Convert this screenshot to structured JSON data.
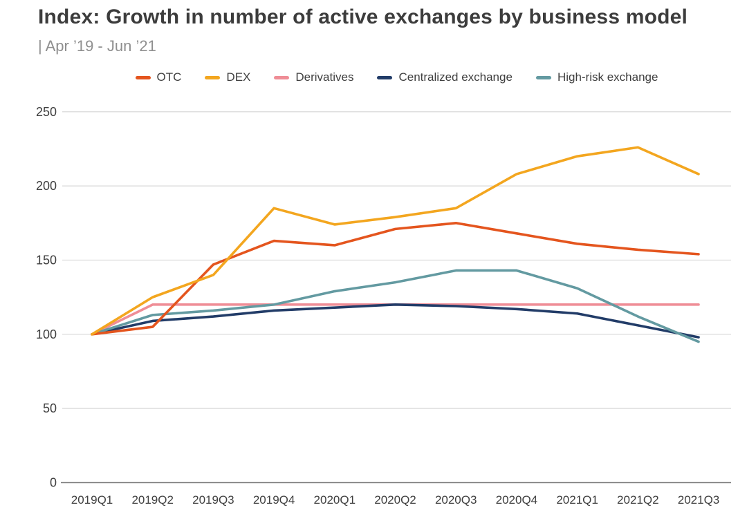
{
  "header": {
    "title": "Index: Growth in number of active exchanges by business model",
    "subtitle": "| Apr ’19 - Jun ’21"
  },
  "axis": {
    "grid_color": "#d9d9d9",
    "axis_line_color": "#7a7a7a",
    "tick_text_color": "#3f3f3f"
  },
  "chart_data": {
    "type": "line",
    "title": "Index: Growth in number of active exchanges by business model",
    "subtitle": "| Apr ’19 - Jun ’21",
    "categories": [
      "2019Q1",
      "2019Q2",
      "2019Q3",
      "2019Q4",
      "2020Q1",
      "2020Q2",
      "2020Q3",
      "2020Q4",
      "2021Q1",
      "2021Q2",
      "2021Q3"
    ],
    "series": [
      {
        "name": "OTC",
        "color": "#e4551e",
        "values": [
          100,
          105,
          147,
          163,
          160,
          171,
          175,
          168,
          161,
          157,
          154
        ]
      },
      {
        "name": "DEX",
        "color": "#f3a61f",
        "values": [
          100,
          125,
          140,
          185,
          174,
          179,
          185,
          208,
          220,
          226,
          208
        ]
      },
      {
        "name": "Derivatives",
        "color": "#ef8d96",
        "values": [
          100,
          120,
          120,
          120,
          120,
          120,
          120,
          120,
          120,
          120,
          120
        ]
      },
      {
        "name": "Centralized exchange",
        "color": "#223c68",
        "values": [
          100,
          109,
          112,
          116,
          118,
          120,
          119,
          117,
          114,
          106,
          98
        ]
      },
      {
        "name": "High-risk exchange",
        "color": "#639aa1",
        "values": [
          100,
          113,
          116,
          120,
          129,
          135,
          143,
          143,
          131,
          112,
          95
        ]
      }
    ],
    "xlabel": "",
    "ylabel": "",
    "ylim": [
      0,
      250
    ],
    "yticks": [
      0,
      50,
      100,
      150,
      200,
      250
    ],
    "grid": "horizontal",
    "legend_position": "top"
  }
}
